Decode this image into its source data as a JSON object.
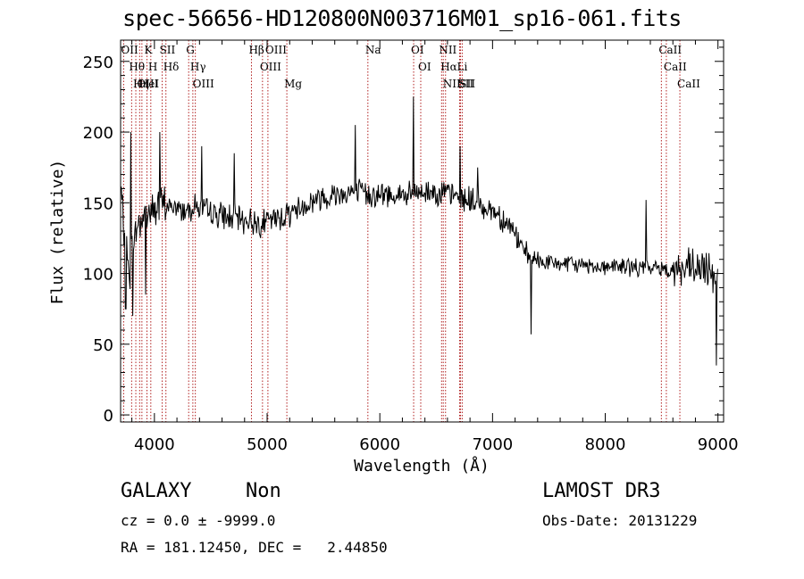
{
  "chart_data": {
    "type": "line",
    "title": "spec-56656-HD120800N003716M01_sp16-061.fits",
    "xlabel": "Wavelength (Å)",
    "ylabel": "Flux (relative)",
    "xlim": [
      3700,
      9050
    ],
    "ylim": [
      -5,
      265
    ],
    "xticks": [
      4000,
      5000,
      6000,
      7000,
      8000,
      9000
    ],
    "yticks": [
      0,
      50,
      100,
      150,
      200,
      250
    ],
    "grid": false,
    "spectrum": {
      "name": "flux",
      "x": [
        3700,
        3720,
        3740,
        3760,
        3780,
        3800,
        3820,
        3840,
        3860,
        3880,
        3900,
        3920,
        3940,
        3960,
        3980,
        4000,
        4050,
        4100,
        4150,
        4200,
        4250,
        4300,
        4350,
        4400,
        4450,
        4500,
        4550,
        4600,
        4650,
        4700,
        4750,
        4800,
        4850,
        4900,
        4950,
        5000,
        5050,
        5100,
        5150,
        5200,
        5250,
        5300,
        5350,
        5400,
        5450,
        5500,
        5550,
        5600,
        5650,
        5700,
        5750,
        5800,
        5850,
        5900,
        5950,
        6000,
        6050,
        6100,
        6150,
        6200,
        6250,
        6300,
        6350,
        6400,
        6450,
        6500,
        6550,
        6600,
        6650,
        6700,
        6750,
        6800,
        6850,
        6900,
        6950,
        7000,
        7050,
        7100,
        7150,
        7200,
        7250,
        7300,
        7350,
        7400,
        7450,
        7500,
        7550,
        7600,
        7650,
        7700,
        7750,
        7800,
        7850,
        7900,
        7950,
        8000,
        8050,
        8100,
        8150,
        8200,
        8250,
        8300,
        8350,
        8400,
        8450,
        8500,
        8550,
        8600,
        8650,
        8700,
        8750,
        8800,
        8850,
        8900,
        8950,
        9000
      ],
      "values": [
        160,
        140,
        120,
        110,
        100,
        115,
        125,
        130,
        135,
        138,
        140,
        142,
        143,
        144,
        145,
        146,
        147,
        148,
        147,
        146,
        145,
        146,
        148,
        147,
        144,
        143,
        142,
        141,
        140,
        139,
        138,
        138,
        137,
        136,
        136,
        137,
        138,
        139,
        141,
        143,
        145,
        147,
        149,
        151,
        153,
        154,
        155,
        156,
        157,
        157,
        158,
        158,
        157,
        156,
        156,
        155,
        155,
        156,
        156,
        155,
        155,
        156,
        157,
        157,
        158,
        158,
        157,
        156,
        155,
        154,
        153,
        152,
        150,
        148,
        146,
        145,
        142,
        138,
        134,
        128,
        120,
        112,
        110,
        109,
        108,
        108,
        107,
        107,
        107,
        106,
        106,
        106,
        106,
        105,
        105,
        105,
        105,
        105,
        105,
        105,
        104,
        104,
        104,
        104,
        104,
        104,
        103,
        103,
        103,
        103,
        103,
        102,
        102,
        102,
        102,
        100
      ]
    },
    "line_markers": [
      {
        "label": "OII",
        "x": 3727
      },
      {
        "label": "Hθ",
        "x": 3798
      },
      {
        "label": "Hη",
        "x": 3835
      },
      {
        "label": "OIII",
        "x": 3869
      },
      {
        "label": "HeI",
        "x": 3889
      },
      {
        "label": "K",
        "x": 3934
      },
      {
        "label": "H",
        "x": 3968
      },
      {
        "label": "SII",
        "x": 4069
      },
      {
        "label": "Hδ",
        "x": 4102
      },
      {
        "label": "G",
        "x": 4304
      },
      {
        "label": "Hγ",
        "x": 4341
      },
      {
        "label": "OIII",
        "x": 4363
      },
      {
        "label": "Hβ",
        "x": 4861
      },
      {
        "label": "OIII",
        "x": 4959
      },
      {
        "label": "OIII",
        "x": 5007
      },
      {
        "label": "Mg",
        "x": 5175
      },
      {
        "label": "Na",
        "x": 5894
      },
      {
        "label": "OI",
        "x": 6300
      },
      {
        "label": "OI",
        "x": 6363
      },
      {
        "label": "NII",
        "x": 6548
      },
      {
        "label": "Hα",
        "x": 6563
      },
      {
        "label": "NII",
        "x": 6583
      },
      {
        "label": "Li",
        "x": 6708
      },
      {
        "label": "SII",
        "x": 6716
      },
      {
        "label": "SII",
        "x": 6731
      },
      {
        "label": "CaII",
        "x": 8498
      },
      {
        "label": "CaII",
        "x": 8542
      },
      {
        "label": "CaII",
        "x": 8662
      }
    ]
  },
  "info": {
    "class": "GALAXY",
    "subclass": "Non",
    "survey": "LAMOST DR3",
    "cz_line": "cz = 0.0 ± -9999.0",
    "obs_date_line": "Obs-Date: 20131229",
    "coords_line": "RA = 181.12450, DEC =   2.44850"
  },
  "colors": {
    "axis": "#000000",
    "spectrum": "#000000",
    "marker": "#b22222"
  }
}
